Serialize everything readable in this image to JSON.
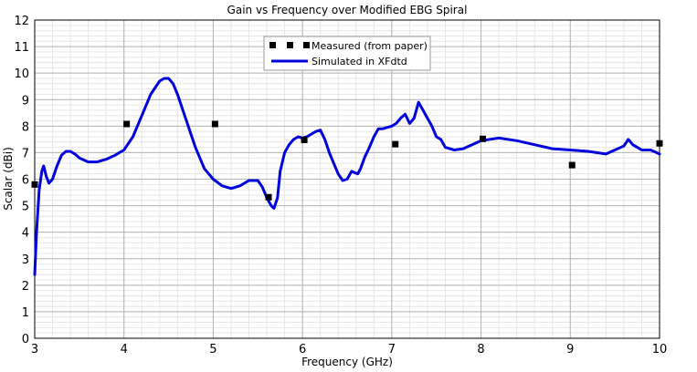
{
  "chart_data": {
    "type": "line",
    "title": "Gain vs Frequency over Modified EBG Spiral",
    "xlabel": "Frequency (GHz)",
    "ylabel": "Scalar (dBi)",
    "xlim": [
      3,
      10
    ],
    "ylim": [
      0,
      12
    ],
    "x_ticks": [
      "3",
      "4",
      "5",
      "6",
      "7",
      "8",
      "9",
      "10"
    ],
    "y_ticks": [
      "0",
      "1",
      "2",
      "3",
      "4",
      "5",
      "6",
      "7",
      "8",
      "9",
      "10",
      "11",
      "12"
    ],
    "grid": true,
    "legend_position": "top-center",
    "series": [
      {
        "name": "Measured (from paper)",
        "style": "markers",
        "marker": "square",
        "color": "#000000",
        "x": [
          3.0,
          4.03,
          5.02,
          5.62,
          6.02,
          7.04,
          8.02,
          9.02,
          10.0
        ],
        "y": [
          5.8,
          8.08,
          8.08,
          5.32,
          7.48,
          7.32,
          7.52,
          6.53,
          7.35
        ]
      },
      {
        "name": "Simulated in XFdtd",
        "style": "line",
        "color": "#0000dd",
        "x": [
          3.0,
          3.02,
          3.05,
          3.08,
          3.1,
          3.13,
          3.16,
          3.2,
          3.25,
          3.3,
          3.35,
          3.4,
          3.45,
          3.5,
          3.6,
          3.7,
          3.8,
          3.9,
          4.0,
          4.1,
          4.2,
          4.3,
          4.4,
          4.45,
          4.5,
          4.55,
          4.6,
          4.7,
          4.8,
          4.9,
          5.0,
          5.1,
          5.2,
          5.3,
          5.4,
          5.5,
          5.55,
          5.6,
          5.65,
          5.68,
          5.72,
          5.75,
          5.8,
          5.85,
          5.9,
          5.95,
          6.0,
          6.05,
          6.1,
          6.15,
          6.2,
          6.25,
          6.3,
          6.35,
          6.4,
          6.45,
          6.5,
          6.55,
          6.58,
          6.62,
          6.65,
          6.7,
          6.75,
          6.8,
          6.85,
          6.9,
          7.0,
          7.05,
          7.1,
          7.15,
          7.2,
          7.25,
          7.3,
          7.35,
          7.4,
          7.45,
          7.5,
          7.55,
          7.6,
          7.7,
          7.8,
          7.9,
          8.0,
          8.2,
          8.4,
          8.6,
          8.8,
          9.0,
          9.2,
          9.4,
          9.5,
          9.6,
          9.65,
          9.7,
          9.75,
          9.8,
          9.9,
          10.0
        ],
        "y": [
          2.4,
          4.0,
          5.6,
          6.3,
          6.5,
          6.1,
          5.85,
          6.0,
          6.5,
          6.9,
          7.05,
          7.05,
          6.95,
          6.8,
          6.65,
          6.65,
          6.75,
          6.9,
          7.1,
          7.6,
          8.4,
          9.2,
          9.7,
          9.8,
          9.8,
          9.6,
          9.2,
          8.2,
          7.2,
          6.4,
          6.0,
          5.75,
          5.65,
          5.75,
          5.95,
          5.95,
          5.7,
          5.3,
          5.0,
          4.9,
          5.3,
          6.3,
          7.0,
          7.3,
          7.5,
          7.6,
          7.55,
          7.6,
          7.7,
          7.8,
          7.85,
          7.5,
          7.0,
          6.6,
          6.2,
          5.95,
          6.0,
          6.3,
          6.25,
          6.2,
          6.4,
          6.85,
          7.2,
          7.6,
          7.9,
          7.9,
          8.0,
          8.1,
          8.3,
          8.45,
          8.1,
          8.3,
          8.9,
          8.6,
          8.3,
          8.0,
          7.6,
          7.5,
          7.2,
          7.1,
          7.15,
          7.3,
          7.45,
          7.55,
          7.45,
          7.3,
          7.15,
          7.1,
          7.05,
          6.95,
          7.1,
          7.25,
          7.5,
          7.3,
          7.2,
          7.1,
          7.1,
          6.95
        ]
      }
    ]
  }
}
